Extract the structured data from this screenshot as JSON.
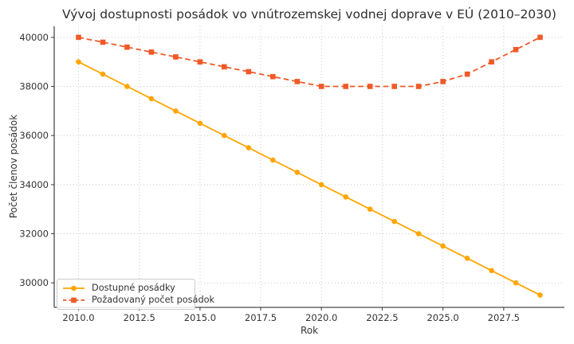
{
  "chart_data": {
    "type": "line",
    "title": "Vývoj dostupnosti posádok vo vnútrozemskej vodnej doprave v EÚ (2010–2030)",
    "xlabel": "Rok",
    "ylabel": "Počet členov posádok",
    "x": [
      2010,
      2011,
      2012,
      2013,
      2014,
      2015,
      2016,
      2017,
      2018,
      2019,
      2020,
      2021,
      2022,
      2023,
      2024,
      2025,
      2026,
      2027,
      2028,
      2029
    ],
    "series": [
      {
        "name": "Dostupné posádky",
        "color": "#FFA500",
        "line_style": "solid",
        "marker": "circle",
        "values": [
          39000,
          38500,
          38000,
          37500,
          37000,
          36500,
          36000,
          35500,
          35000,
          34500,
          34000,
          33500,
          33000,
          32500,
          32000,
          31500,
          31000,
          30500,
          30000,
          29500
        ]
      },
      {
        "name": "Požadovaný počet posádok",
        "color": "#EF5A28",
        "line_style": "dashed",
        "marker": "square",
        "values": [
          40000,
          39800,
          39600,
          39400,
          39200,
          39000,
          38800,
          38600,
          38400,
          38200,
          38000,
          38000,
          38000,
          38000,
          38000,
          38200,
          38500,
          39000,
          39500,
          40000
        ]
      }
    ],
    "xtick_labels": [
      "2010.0",
      "2012.5",
      "2015.0",
      "2017.5",
      "2020.0",
      "2022.5",
      "2025.0",
      "2027.5"
    ],
    "ytick_labels": [
      "30000",
      "32000",
      "34000",
      "36000",
      "38000",
      "40000"
    ],
    "xlim": [
      2009,
      2030
    ],
    "ylim": [
      29000,
      40450
    ],
    "grid": true,
    "grid_style": "dotted",
    "legend_position": "lower-left"
  },
  "style": {
    "background": "#ffffff",
    "grid_color": "#c9c9c9",
    "spine_color": "#4a4a4a",
    "tick_text_color": "#333333",
    "title_color": "#2e2e2e"
  }
}
